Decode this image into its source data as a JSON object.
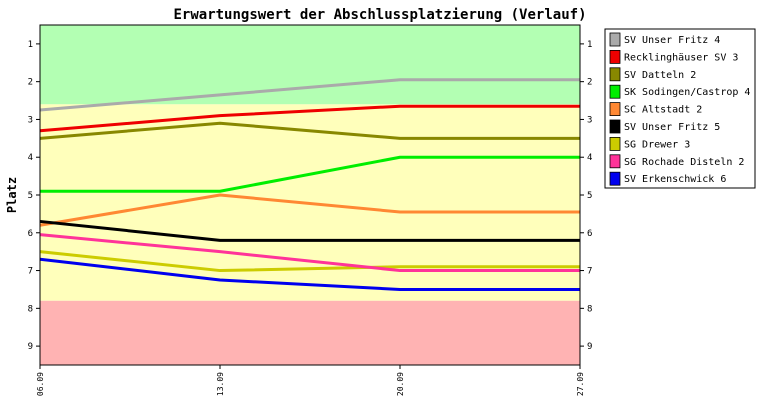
{
  "chart_data": {
    "type": "line",
    "title": "Erwartungswert der Abschlussplatzierung (Verlauf)",
    "ylabel": "Platz",
    "xlabel": "",
    "x": [
      "06.09",
      "13.09",
      "20.09",
      "27.09"
    ],
    "ylim": [
      0.5,
      9.5
    ],
    "y_inverted": true,
    "yticks": [
      1,
      2,
      3,
      4,
      5,
      6,
      7,
      8,
      9
    ],
    "grid": false,
    "legend_position": "right",
    "bands": [
      {
        "from": 0.5,
        "to": 2.6,
        "color": "#b3ffb3"
      },
      {
        "from": 2.6,
        "to": 7.8,
        "color": "#ffffbb"
      },
      {
        "from": 7.8,
        "to": 9.5,
        "color": "#ffb3b3"
      }
    ],
    "series": [
      {
        "name": "SV Unser Fritz 4",
        "color": "#aaaaaa",
        "values": [
          2.75,
          2.35,
          1.95,
          1.95
        ]
      },
      {
        "name": "Recklinghäuser SV 3",
        "color": "#ee0000",
        "values": [
          3.3,
          2.9,
          2.65,
          2.65
        ]
      },
      {
        "name": "SV Datteln 2",
        "color": "#888800",
        "values": [
          3.5,
          3.1,
          3.5,
          3.5
        ]
      },
      {
        "name": "SK Sodingen/Castrop 4",
        "color": "#00ee00",
        "values": [
          4.9,
          4.9,
          4.0,
          4.0
        ]
      },
      {
        "name": "SC Altstadt 2",
        "color": "#ff8833",
        "values": [
          5.8,
          5.0,
          5.45,
          5.45
        ]
      },
      {
        "name": "SV Unser Fritz 5",
        "color": "#000000",
        "values": [
          5.7,
          6.2,
          6.2,
          6.2
        ]
      },
      {
        "name": "SG Drewer 3",
        "color": "#cccc00",
        "values": [
          6.5,
          7.0,
          6.9,
          6.9
        ]
      },
      {
        "name": "SG Rochade Disteln 2",
        "color": "#ff3399",
        "values": [
          6.05,
          6.5,
          7.0,
          7.0
        ]
      },
      {
        "name": "SV Erkenschwick 6",
        "color": "#0000ee",
        "values": [
          6.7,
          7.25,
          7.5,
          7.5
        ]
      }
    ]
  }
}
